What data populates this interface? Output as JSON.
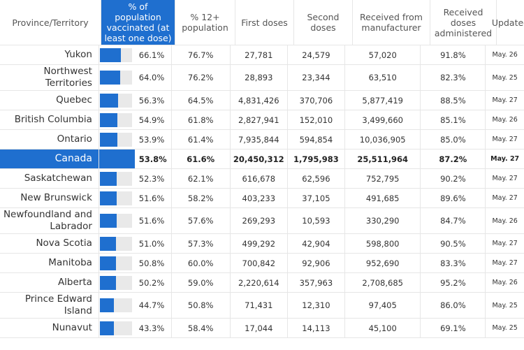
{
  "header": {
    "province": "Province/Territory",
    "pct_pop": "% of population vaccinated (at least one dose)",
    "pct_12": "% 12+ population",
    "first": "First doses",
    "second": "Second doses",
    "received": "Received from manufacturer",
    "administered": "Received doses administered",
    "updated": "Updated"
  },
  "rows": [
    {
      "name": "Yukon",
      "pct": "66.1%",
      "pct_value": 66.1,
      "pct12": "76.7%",
      "first": "27,781",
      "second": "24,579",
      "received": "57,020",
      "admin": "91.8%",
      "updated": "May. 26"
    },
    {
      "name": "Northwest Territories",
      "pct": "64.0%",
      "pct_value": 64.0,
      "pct12": "76.2%",
      "first": "28,893",
      "second": "23,344",
      "received": "63,510",
      "admin": "82.3%",
      "updated": "May. 25"
    },
    {
      "name": "Quebec",
      "pct": "56.3%",
      "pct_value": 56.3,
      "pct12": "64.5%",
      "first": "4,831,426",
      "second": "370,706",
      "received": "5,877,419",
      "admin": "88.5%",
      "updated": "May. 27"
    },
    {
      "name": "British Columbia",
      "pct": "54.9%",
      "pct_value": 54.9,
      "pct12": "61.8%",
      "first": "2,827,941",
      "second": "152,010",
      "received": "3,499,660",
      "admin": "85.1%",
      "updated": "May. 26"
    },
    {
      "name": "Ontario",
      "pct": "53.9%",
      "pct_value": 53.9,
      "pct12": "61.4%",
      "first": "7,935,844",
      "second": "594,854",
      "received": "10,036,905",
      "admin": "85.0%",
      "updated": "May. 27"
    },
    {
      "name": "Canada",
      "pct": "53.8%",
      "pct_value": 53.8,
      "pct12": "61.6%",
      "first": "20,450,312",
      "second": "1,795,983",
      "received": "25,511,964",
      "admin": "87.2%",
      "updated": "May. 27",
      "highlight": true
    },
    {
      "name": "Saskatchewan",
      "pct": "52.3%",
      "pct_value": 52.3,
      "pct12": "62.1%",
      "first": "616,678",
      "second": "62,596",
      "received": "752,795",
      "admin": "90.2%",
      "updated": "May. 27"
    },
    {
      "name": "New Brunswick",
      "pct": "51.6%",
      "pct_value": 51.6,
      "pct12": "58.2%",
      "first": "403,233",
      "second": "37,105",
      "received": "491,685",
      "admin": "89.6%",
      "updated": "May. 27"
    },
    {
      "name": "Newfoundland and Labrador",
      "pct": "51.6%",
      "pct_value": 51.6,
      "pct12": "57.6%",
      "first": "269,293",
      "second": "10,593",
      "received": "330,290",
      "admin": "84.7%",
      "updated": "May. 26"
    },
    {
      "name": "Nova Scotia",
      "pct": "51.0%",
      "pct_value": 51.0,
      "pct12": "57.3%",
      "first": "499,292",
      "second": "42,904",
      "received": "598,800",
      "admin": "90.5%",
      "updated": "May. 27"
    },
    {
      "name": "Manitoba",
      "pct": "50.8%",
      "pct_value": 50.8,
      "pct12": "60.0%",
      "first": "700,842",
      "second": "92,906",
      "received": "952,690",
      "admin": "83.3%",
      "updated": "May. 27"
    },
    {
      "name": "Alberta",
      "pct": "50.2%",
      "pct_value": 50.2,
      "pct12": "59.0%",
      "first": "2,220,614",
      "second": "357,963",
      "received": "2,708,685",
      "admin": "95.2%",
      "updated": "May. 26"
    },
    {
      "name": "Prince Edward Island",
      "pct": "44.7%",
      "pct_value": 44.7,
      "pct12": "50.8%",
      "first": "71,431",
      "second": "12,310",
      "received": "97,405",
      "admin": "86.0%",
      "updated": "May. 25"
    },
    {
      "name": "Nunavut",
      "pct": "43.3%",
      "pct_value": 43.3,
      "pct12": "58.4%",
      "first": "17,044",
      "second": "14,113",
      "received": "45,100",
      "admin": "69.1%",
      "updated": "May. 25"
    }
  ]
}
